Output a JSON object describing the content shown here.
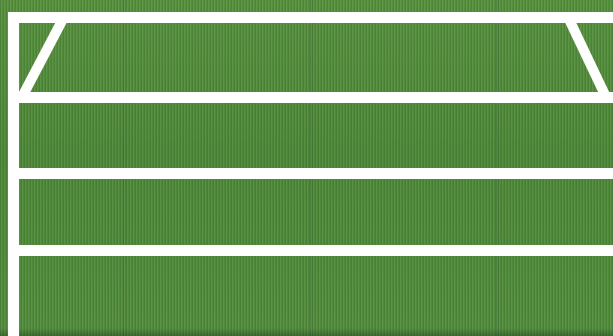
{
  "scene": {
    "subject": "green-fence-with-white-gate-frame",
    "colors": {
      "panel_green": "#4f8a3e",
      "gate_white": "#ffffff"
    },
    "icons": [
      "gate-frame",
      "fence-panel"
    ]
  }
}
